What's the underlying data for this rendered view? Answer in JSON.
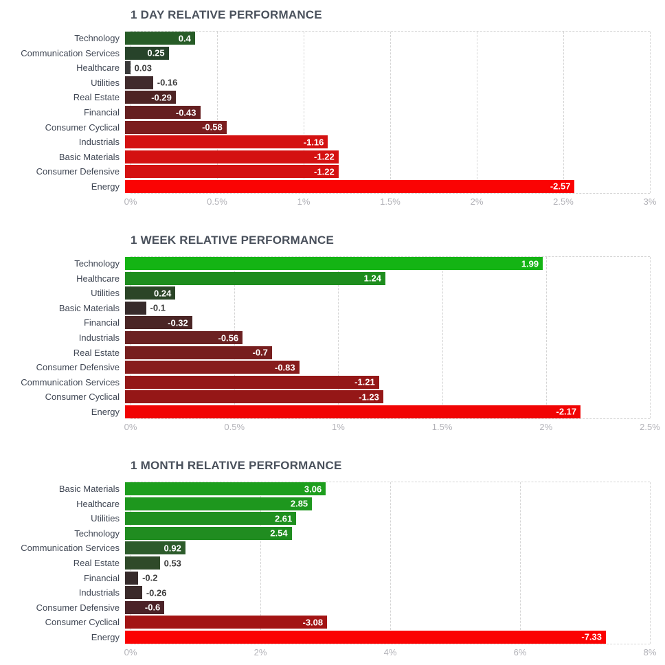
{
  "page": {
    "background": "#ffffff",
    "title_color": "#4a515c",
    "category_label_color": "#404754",
    "tick_label_color": "#b2b2b8",
    "gridline_color": "#d4d4d4",
    "value_label_inside_color": "#ffffff",
    "value_label_outside_color": "#3c3c3c"
  },
  "chart_data": [
    {
      "type": "bar",
      "orientation": "horizontal",
      "title": "1 DAY RELATIVE PERFORMANCE",
      "xlabel": "",
      "ylabel": "",
      "grid": true,
      "x_axis": {
        "unit": "%",
        "max": 3,
        "ticks": [
          "0%",
          "0.5%",
          "1%",
          "1.5%",
          "2%",
          "2.5%",
          "3%"
        ]
      },
      "bars": [
        {
          "label": "Technology",
          "value": 0.4,
          "display": "0.4",
          "color": "#275c27"
        },
        {
          "label": "Communication Services",
          "value": 0.25,
          "display": "0.25",
          "color": "#27432a"
        },
        {
          "label": "Healthcare",
          "value": 0.03,
          "display": "0.03",
          "color": "#3a3a3a"
        },
        {
          "label": "Utilities",
          "value": -0.16,
          "display": "-0.16",
          "color": "#402a2c"
        },
        {
          "label": "Real Estate",
          "value": -0.29,
          "display": "-0.29",
          "color": "#4e2424"
        },
        {
          "label": "Financial",
          "value": -0.43,
          "display": "-0.43",
          "color": "#651f20"
        },
        {
          "label": "Consumer Cyclical",
          "value": -0.58,
          "display": "-0.58",
          "color": "#7b1d1e"
        },
        {
          "label": "Industrials",
          "value": -1.16,
          "display": "-1.16",
          "color": "#d41111"
        },
        {
          "label": "Basic Materials",
          "value": -1.22,
          "display": "-1.22",
          "color": "#d41111"
        },
        {
          "label": "Consumer Defensive",
          "value": -1.22,
          "display": "-1.22",
          "color": "#d41111"
        },
        {
          "label": "Energy",
          "value": -2.57,
          "display": "-2.57",
          "color": "#fa0303"
        }
      ]
    },
    {
      "type": "bar",
      "orientation": "horizontal",
      "title": "1 WEEK RELATIVE PERFORMANCE",
      "xlabel": "",
      "ylabel": "",
      "grid": true,
      "x_axis": {
        "unit": "%",
        "max": 2.5,
        "ticks": [
          "0%",
          "0.5%",
          "1%",
          "1.5%",
          "2%",
          "2.5%"
        ]
      },
      "bars": [
        {
          "label": "Technology",
          "value": 1.99,
          "display": "1.99",
          "color": "#14b414"
        },
        {
          "label": "Healthcare",
          "value": 1.24,
          "display": "1.24",
          "color": "#1e8d1e"
        },
        {
          "label": "Utilities",
          "value": 0.24,
          "display": "0.24",
          "color": "#2b4527"
        },
        {
          "label": "Basic Materials",
          "value": -0.1,
          "display": "-0.1",
          "color": "#372b2b"
        },
        {
          "label": "Financial",
          "value": -0.32,
          "display": "-0.32",
          "color": "#4a2525"
        },
        {
          "label": "Industrials",
          "value": -0.56,
          "display": "-0.56",
          "color": "#6b2122"
        },
        {
          "label": "Real Estate",
          "value": -0.7,
          "display": "-0.7",
          "color": "#771e1e"
        },
        {
          "label": "Consumer Defensive",
          "value": -0.83,
          "display": "-0.83",
          "color": "#871c1c"
        },
        {
          "label": "Communication Services",
          "value": -1.21,
          "display": "-1.21",
          "color": "#941717"
        },
        {
          "label": "Consumer Cyclical",
          "value": -1.23,
          "display": "-1.23",
          "color": "#951717"
        },
        {
          "label": "Energy",
          "value": -2.17,
          "display": "-2.17",
          "color": "#f10404"
        }
      ]
    },
    {
      "type": "bar",
      "orientation": "horizontal",
      "title": "1 MONTH RELATIVE PERFORMANCE",
      "xlabel": "",
      "ylabel": "",
      "grid": true,
      "x_axis": {
        "unit": "%",
        "max": 8,
        "ticks": [
          "0%",
          "2%",
          "4%",
          "6%",
          "8%"
        ]
      },
      "bars": [
        {
          "label": "Basic Materials",
          "value": 3.06,
          "display": "3.06",
          "color": "#1d9e1d"
        },
        {
          "label": "Healthcare",
          "value": 2.85,
          "display": "2.85",
          "color": "#1e971e"
        },
        {
          "label": "Utilities",
          "value": 2.61,
          "display": "2.61",
          "color": "#1f901f"
        },
        {
          "label": "Technology",
          "value": 2.54,
          "display": "2.54",
          "color": "#208c20"
        },
        {
          "label": "Communication Services",
          "value": 0.92,
          "display": "0.92",
          "color": "#2d5c2b"
        },
        {
          "label": "Real Estate",
          "value": 0.53,
          "display": "0.53",
          "color": "#2f4a29"
        },
        {
          "label": "Financial",
          "value": -0.2,
          "display": "-0.2",
          "color": "#362b2b"
        },
        {
          "label": "Industrials",
          "value": -0.26,
          "display": "-0.26",
          "color": "#3a2a2a"
        },
        {
          "label": "Consumer Defensive",
          "value": -0.6,
          "display": "-0.6",
          "color": "#4b2227"
        },
        {
          "label": "Consumer Cyclical",
          "value": -3.08,
          "display": "-3.08",
          "color": "#a31414"
        },
        {
          "label": "Energy",
          "value": -7.33,
          "display": "-7.33",
          "color": "#fb0202"
        }
      ]
    }
  ]
}
